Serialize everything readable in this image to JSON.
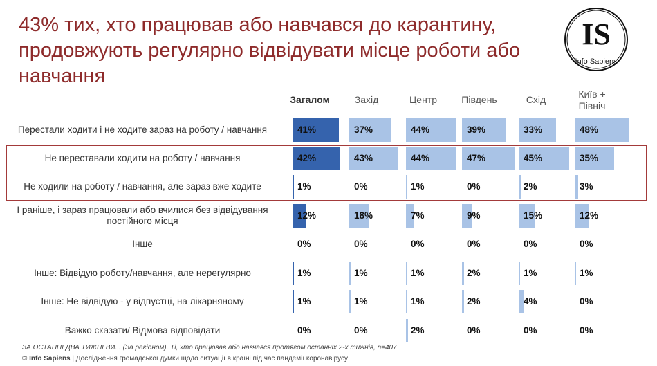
{
  "title": "43% тих, хто працював або навчався до карантину, продовжують регулярно відвідувати місце роботи або навчання",
  "logo": {
    "text": "IS",
    "subtext": "Info Sapiens"
  },
  "chart_data": {
    "type": "bar",
    "orientation": "horizontal",
    "title": "43% тих, хто працював або навчався до карантину, продовжують регулярно відвідувати місце роботи або навчання",
    "columns": [
      "Загалом",
      "Захід",
      "Центр",
      "Південь",
      "Схід",
      "Київ + Північ"
    ],
    "categories": [
      "Перестали ходити і не ходите зараз на роботу / навчання",
      "Не переставали ходити на роботу / навчання",
      "Не ходили на роботу / навчання, але зараз вже ходите",
      "І раніше, і зараз працювали або вчилися без відвідування постійного місця",
      "Інше",
      "Інше: Відвідую роботу/навчання, але нерегулярно",
      "Інше: Не відвідую - у відпустці, на лікарняному",
      "Важко сказати/ Відмова відповідати"
    ],
    "values": [
      [
        41,
        37,
        44,
        39,
        33,
        48
      ],
      [
        42,
        43,
        44,
        47,
        45,
        35
      ],
      [
        1,
        0,
        1,
        0,
        2,
        3
      ],
      [
        12,
        18,
        7,
        9,
        15,
        12
      ],
      [
        0,
        0,
        0,
        0,
        0,
        0
      ],
      [
        1,
        1,
        1,
        2,
        1,
        1
      ],
      [
        1,
        1,
        1,
        2,
        4,
        0
      ],
      [
        0,
        0,
        2,
        0,
        0,
        0
      ]
    ],
    "unit": "%",
    "highlighted_rows": [
      1,
      2
    ],
    "colors": {
      "total": "#3563ad",
      "region": "#a9c3e6",
      "highlight_border": "#a33a3a",
      "title": "#8e2b2b"
    }
  },
  "footer": {
    "note": "ЗА ОСТАННІ ДВА ТИЖНІ ВИ... (За регіоном). Ті, хто працював або навчався протягом останніх 2-х тижнів, n=407",
    "copyright_mark": "©",
    "brand": "Info Sapiens",
    "text": " | Дослідження громадської думки щодо ситуації в країні під час пандемії коронавірусу"
  }
}
